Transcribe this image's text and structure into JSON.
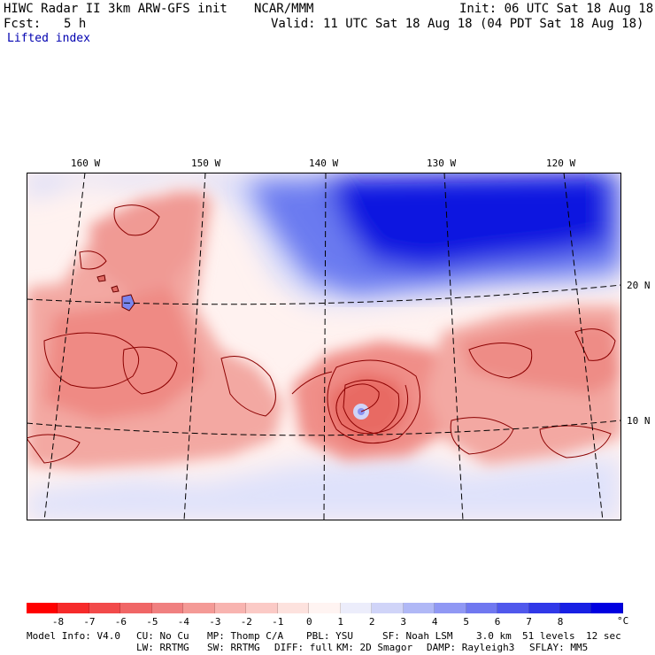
{
  "header": {
    "title": "HIWC Radar II 3km ARW-GFS init",
    "org": "NCAR/MMM",
    "init": "Init: 06 UTC Sat 18 Aug 18",
    "fcst_label": "Fcst:",
    "fcst_value": "5 h",
    "valid": "Valid: 11 UTC Sat 18 Aug 18 (04 PDT Sat 18 Aug 18)",
    "field": "Lifted index"
  },
  "map": {
    "lon_labels": [
      "160 W",
      "150 W",
      "140 W",
      "130 W",
      "120 W"
    ],
    "lat_labels": [
      "20 N",
      "10 N"
    ],
    "colors": {
      "strong_positive": "#0010e0",
      "positive": "#6a7af0",
      "weak_positive": "#d8dcfa",
      "neutral": "#fff2f0",
      "weak_negative": "#f8c6c2",
      "negative": "#f08e88",
      "strong_negative": "#e05a56",
      "contour": "#8b0000"
    }
  },
  "colorbar": {
    "colors": [
      "#ff0000",
      "#f62a2a",
      "#f24a4a",
      "#f06666",
      "#f08080",
      "#f49a96",
      "#f8b4b0",
      "#fbcac6",
      "#fde2de",
      "#fff4f2",
      "#ecedfb",
      "#d0d4f8",
      "#b0b8f6",
      "#9098f4",
      "#7078f0",
      "#5058ec",
      "#3038e8",
      "#1820e4",
      "#0000e0"
    ],
    "tick_labels": [
      "-8",
      "-7",
      "-6",
      "-5",
      "-4",
      "-3",
      "-2",
      "-1",
      "0",
      "1",
      "2",
      "3",
      "4",
      "5",
      "6",
      "7",
      "8"
    ],
    "unit": "°C"
  },
  "footer": {
    "line1": [
      "Model Info: V4.0",
      "CU: No Cu",
      "MP: Thomp C/A",
      "PBL: YSU",
      "SF: Noah LSM",
      "3.0 km",
      "51 levels",
      "12 sec"
    ],
    "line2": [
      "LW: RRTMG",
      "SW: RRTMG",
      "DIFF: full",
      "KM: 2D Smagor",
      "DAMP: Rayleigh3",
      "SFLAY: MM5"
    ]
  }
}
